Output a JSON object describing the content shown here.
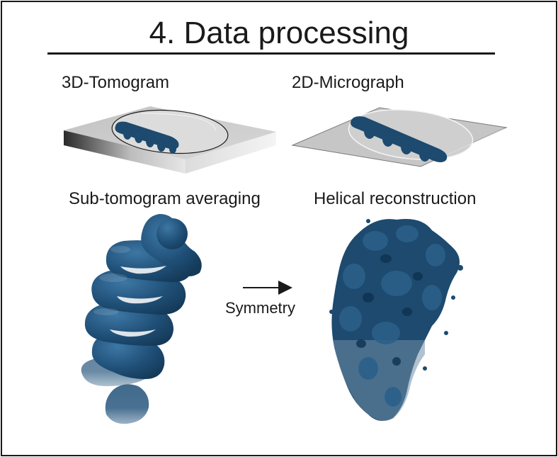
{
  "title": "4. Data processing",
  "panels": {
    "tomogram_label": "3D-Tomogram",
    "micrograph_label": "2D-Micrograph",
    "subtomo_label": "Sub-tomogram averaging",
    "helical_label": "Helical reconstruction",
    "symmetry_label": "Symmetry"
  },
  "colors": {
    "structure_blue": "#1d4a6e",
    "slab_gray": "#c6c6c6",
    "border": "#1a1a1a"
  }
}
